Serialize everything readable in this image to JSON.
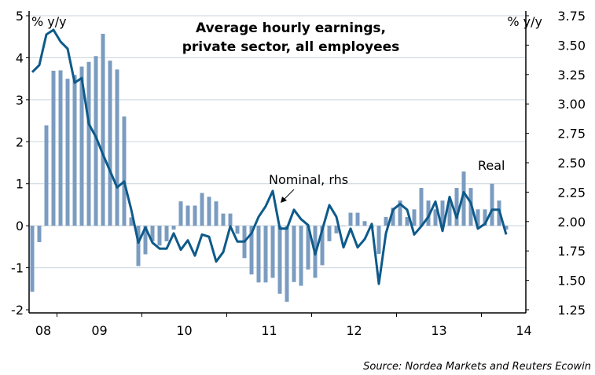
{
  "chart_data": {
    "type": "bar+line",
    "title": [
      "Average hourly earnings,",
      "private sector, all employees"
    ],
    "ylabel_left": "% y/y",
    "ylabel_right": "% y/y",
    "ylim_left": [
      -2,
      5
    ],
    "ylim_right": [
      1.25,
      3.75
    ],
    "yticks_left": [
      "5",
      "4",
      "3",
      "2",
      "1",
      "0",
      "-1",
      "-2"
    ],
    "yticks_right": [
      "3.75",
      "3.50",
      "3.25",
      "3.00",
      "2.75",
      "2.50",
      "2.25",
      "2.00",
      "1.75",
      "1.50",
      "1.25"
    ],
    "first_month": "2008-09",
    "xtick_labels": [
      "08",
      "09",
      "10",
      "11",
      "12",
      "13",
      "14"
    ],
    "series": [
      {
        "name": "Real",
        "type": "bar",
        "axis": "left",
        "color": "#7b9cc0",
        "values": [
          -1.57,
          -0.39,
          2.39,
          3.69,
          3.7,
          3.5,
          3.59,
          3.79,
          3.9,
          4.04,
          4.57,
          3.93,
          3.72,
          2.6,
          0.2,
          -0.96,
          -0.68,
          -0.37,
          -0.47,
          -0.37,
          -0.09,
          0.58,
          0.48,
          0.48,
          0.78,
          0.69,
          0.58,
          0.29,
          0.29,
          -0.19,
          -0.77,
          -1.16,
          -1.35,
          -1.35,
          -1.24,
          -1.62,
          -1.81,
          -1.34,
          -1.43,
          -1.04,
          -1.24,
          -0.94,
          -0.37,
          -0.18,
          0.0,
          0.31,
          0.31,
          0.11,
          -0.05,
          -0.67,
          0.21,
          0.43,
          0.6,
          0.21,
          0.39,
          0.9,
          0.6,
          0.39,
          0.6,
          0.6,
          0.9,
          1.29,
          0.9,
          0.39,
          0.39,
          1.0,
          0.6,
          -0.09
        ]
      },
      {
        "name": "Nominal, rhs",
        "type": "line",
        "axis": "right",
        "color": "#0e5a8a",
        "values": [
          3.27,
          3.33,
          3.59,
          3.63,
          3.53,
          3.47,
          3.18,
          3.22,
          2.83,
          2.72,
          2.57,
          2.43,
          2.29,
          2.34,
          2.1,
          1.82,
          1.95,
          1.82,
          1.77,
          1.77,
          1.9,
          1.76,
          1.84,
          1.71,
          1.89,
          1.87,
          1.66,
          1.74,
          1.96,
          1.83,
          1.83,
          1.9,
          2.04,
          2.13,
          2.26,
          1.94,
          1.94,
          2.1,
          2.02,
          1.97,
          1.72,
          1.93,
          2.14,
          2.04,
          1.78,
          1.94,
          1.78,
          1.85,
          1.98,
          1.47,
          1.9,
          2.1,
          2.15,
          2.1,
          1.89,
          1.96,
          2.04,
          2.17,
          1.92,
          2.21,
          2.03,
          2.25,
          2.16,
          1.94,
          1.98,
          2.1,
          2.1,
          1.89
        ]
      }
    ],
    "annotations": {
      "nominal": "Nominal, rhs",
      "real": "Real"
    },
    "source": "Source: Nordea Markets and Reuters Ecowin"
  }
}
